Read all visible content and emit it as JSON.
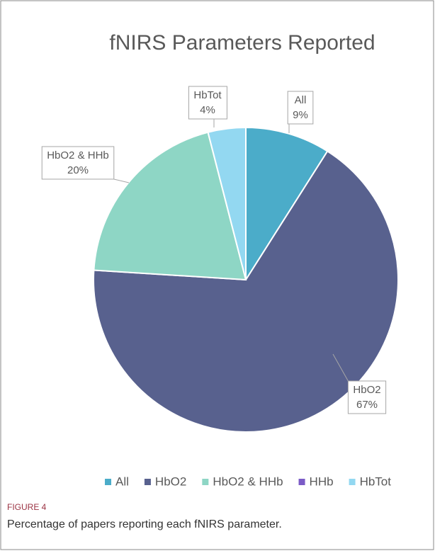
{
  "chart_data": {
    "type": "pie",
    "title": "fNIRS Parameters Reported",
    "categories": [
      "All",
      "HbO2",
      "HbO2 & HHb",
      "HHb",
      "HbTot"
    ],
    "values": [
      9,
      67,
      20,
      0,
      4
    ],
    "value_labels": [
      "9%",
      "67%",
      "20%",
      null,
      "4%"
    ],
    "colors": [
      "#4bacc9",
      "#58618e",
      "#8ed6c5",
      "#7b5bc6",
      "#93d8f1"
    ],
    "legend": "bottom",
    "figure_label": "FIGURE 4",
    "caption": "Percentage of papers reporting each fNIRS parameter."
  }
}
